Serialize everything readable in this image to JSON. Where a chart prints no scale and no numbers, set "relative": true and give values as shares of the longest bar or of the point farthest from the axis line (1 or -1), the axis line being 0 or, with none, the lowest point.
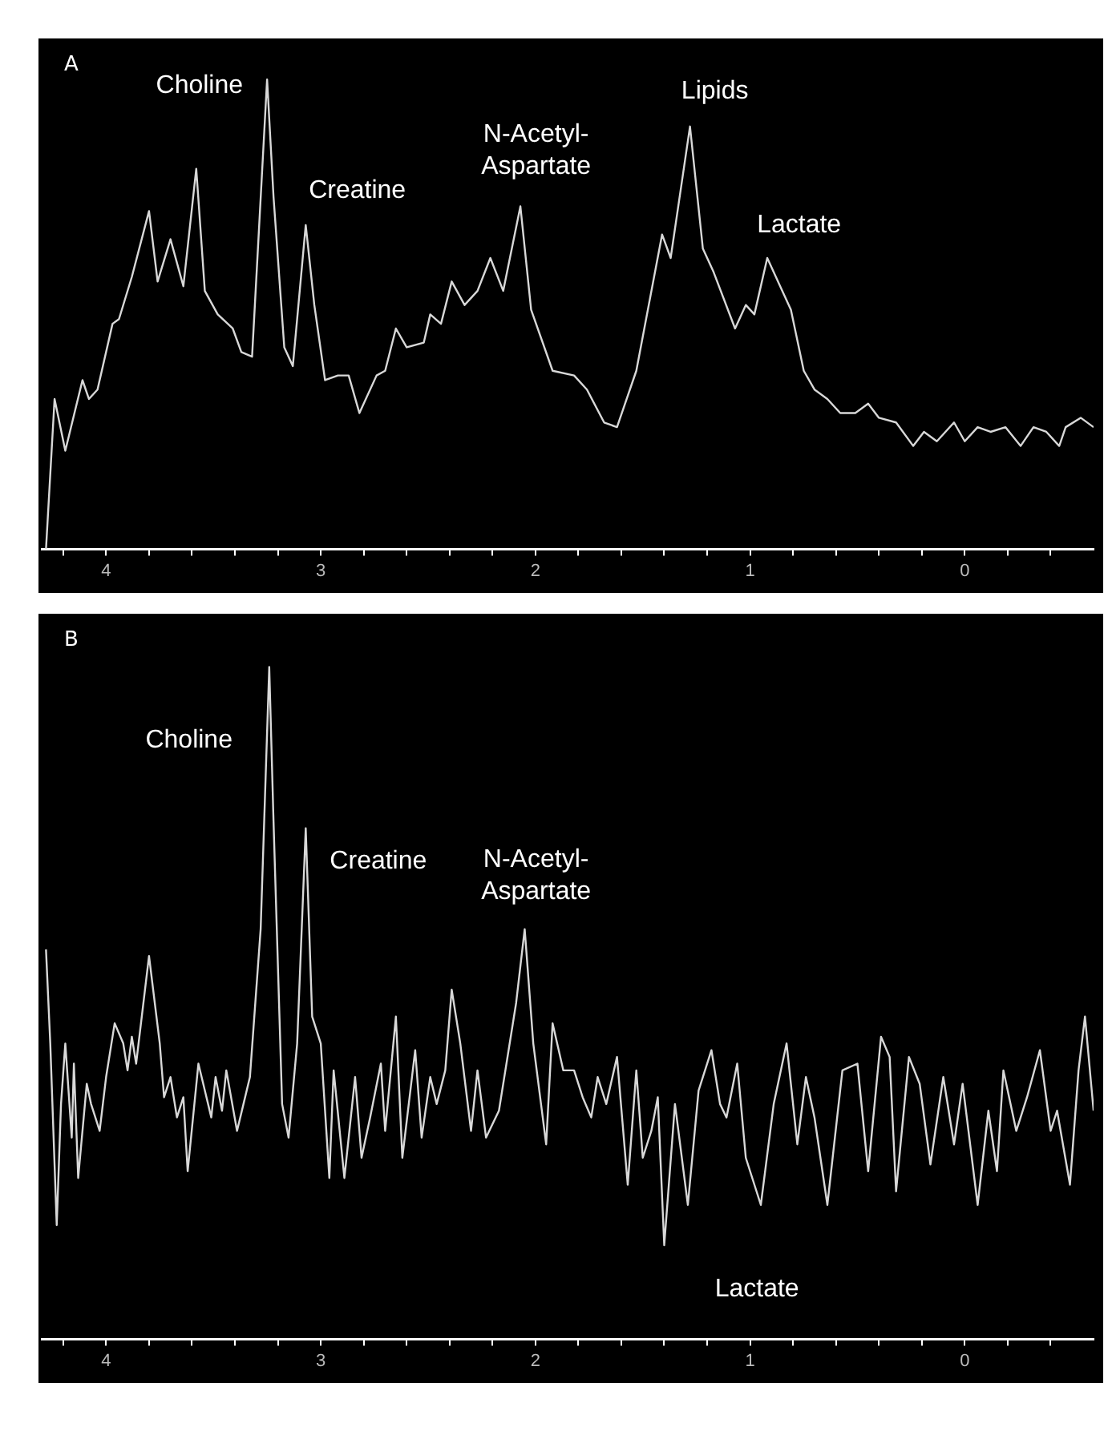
{
  "chart_data": [
    {
      "type": "line",
      "title": "A",
      "relative": true,
      "color": "#d8d8d8",
      "marker": "none",
      "xlim": [
        4.3,
        -0.6
      ],
      "xticks": [
        {
          "value": 4.2,
          "label": null
        },
        4,
        {
          "value": 3.8,
          "label": null
        },
        {
          "value": 3.6,
          "label": null
        },
        {
          "value": 3.4,
          "label": null
        },
        {
          "value": 3.2,
          "label": null
        },
        3,
        {
          "value": 2.8,
          "label": null
        },
        {
          "value": 2.6,
          "label": null
        },
        {
          "value": 2.4,
          "label": null
        },
        {
          "value": 2.2,
          "label": null
        },
        2,
        {
          "value": 1.8,
          "label": null
        },
        {
          "value": 1.6,
          "label": null
        },
        {
          "value": 1.4,
          "label": null
        },
        {
          "value": 1.2,
          "label": null
        },
        1,
        {
          "value": 0.8,
          "label": null
        },
        {
          "value": 0.6,
          "label": null
        },
        {
          "value": 0.4,
          "label": null
        },
        {
          "value": 0.2,
          "label": null
        },
        0,
        {
          "value": -0.2,
          "label": null
        },
        {
          "value": -0.4,
          "label": null
        }
      ],
      "x": [
        4.28,
        4.24,
        4.19,
        4.11,
        4.08,
        4.04,
        3.97,
        3.94,
        3.88,
        3.8,
        3.76,
        3.7,
        3.64,
        3.58,
        3.54,
        3.48,
        3.41,
        3.37,
        3.32,
        3.25,
        3.22,
        3.17,
        3.13,
        3.07,
        3.03,
        2.98,
        2.92,
        2.87,
        2.82,
        2.74,
        2.7,
        2.65,
        2.6,
        2.52,
        2.49,
        2.44,
        2.39,
        2.33,
        2.27,
        2.21,
        2.15,
        2.07,
        2.02,
        1.92,
        1.82,
        1.76,
        1.68,
        1.62,
        1.53,
        1.41,
        1.37,
        1.28,
        1.22,
        1.17,
        1.07,
        1.02,
        0.98,
        0.92,
        0.86,
        0.81,
        0.75,
        0.7,
        0.64,
        0.58,
        0.51,
        0.45,
        0.4,
        0.32,
        0.24,
        0.19,
        0.13,
        0.05,
        0.0,
        -0.06,
        -0.12,
        -0.19,
        -0.26,
        -0.32,
        -0.38,
        -0.44,
        -0.47,
        -0.54,
        -0.6
      ],
      "values": [
        0.0,
        0.32,
        0.21,
        0.36,
        0.32,
        0.34,
        0.48,
        0.49,
        0.58,
        0.72,
        0.57,
        0.66,
        0.56,
        0.81,
        0.55,
        0.5,
        0.47,
        0.42,
        0.41,
        1.0,
        0.75,
        0.43,
        0.39,
        0.69,
        0.52,
        0.36,
        0.37,
        0.37,
        0.29,
        0.37,
        0.38,
        0.47,
        0.43,
        0.44,
        0.5,
        0.48,
        0.57,
        0.52,
        0.55,
        0.62,
        0.55,
        0.73,
        0.51,
        0.38,
        0.37,
        0.34,
        0.27,
        0.26,
        0.38,
        0.67,
        0.62,
        0.9,
        0.64,
        0.59,
        0.47,
        0.52,
        0.5,
        0.62,
        0.56,
        0.51,
        0.38,
        0.34,
        0.32,
        0.29,
        0.29,
        0.31,
        0.28,
        0.27,
        0.22,
        0.25,
        0.23,
        0.27,
        0.23,
        0.26,
        0.25,
        0.26,
        0.22,
        0.26,
        0.25,
        0.22,
        0.26,
        0.28,
        0.26
      ],
      "annotations": [
        "Choline",
        "Creatine",
        "N-Acetyl-\nAspartate",
        "Lipids",
        "Lactate"
      ]
    },
    {
      "type": "line",
      "title": "B",
      "relative": true,
      "color": "#d8d8d8",
      "marker": "none",
      "xlim": [
        4.3,
        -0.6
      ],
      "xticks": [
        {
          "value": 4.2,
          "label": null
        },
        4,
        {
          "value": 3.8,
          "label": null
        },
        {
          "value": 3.6,
          "label": null
        },
        {
          "value": 3.4,
          "label": null
        },
        {
          "value": 3.2,
          "label": null
        },
        3,
        {
          "value": 2.8,
          "label": null
        },
        {
          "value": 2.6,
          "label": null
        },
        {
          "value": 2.4,
          "label": null
        },
        {
          "value": 2.2,
          "label": null
        },
        2,
        {
          "value": 1.8,
          "label": null
        },
        {
          "value": 1.6,
          "label": null
        },
        {
          "value": 1.4,
          "label": null
        },
        {
          "value": 1.2,
          "label": null
        },
        1,
        {
          "value": 0.8,
          "label": null
        },
        {
          "value": 0.6,
          "label": null
        },
        {
          "value": 0.4,
          "label": null
        },
        {
          "value": 0.2,
          "label": null
        },
        0,
        {
          "value": -0.2,
          "label": null
        },
        {
          "value": -0.4,
          "label": null
        }
      ],
      "x": [
        4.28,
        4.26,
        4.23,
        4.21,
        4.19,
        4.16,
        4.15,
        4.13,
        4.09,
        4.07,
        4.03,
        4.0,
        3.96,
        3.92,
        3.9,
        3.88,
        3.86,
        3.8,
        3.75,
        3.73,
        3.7,
        3.67,
        3.64,
        3.62,
        3.57,
        3.54,
        3.51,
        3.49,
        3.46,
        3.44,
        3.39,
        3.36,
        3.33,
        3.28,
        3.24,
        3.22,
        3.18,
        3.15,
        3.11,
        3.07,
        3.04,
        3.0,
        2.96,
        2.94,
        2.89,
        2.84,
        2.81,
        2.77,
        2.72,
        2.7,
        2.65,
        2.62,
        2.56,
        2.53,
        2.49,
        2.46,
        2.42,
        2.39,
        2.35,
        2.3,
        2.27,
        2.23,
        2.17,
        2.09,
        2.05,
        2.01,
        1.95,
        1.92,
        1.87,
        1.82,
        1.78,
        1.74,
        1.71,
        1.67,
        1.62,
        1.57,
        1.53,
        1.5,
        1.46,
        1.43,
        1.4,
        1.35,
        1.29,
        1.24,
        1.18,
        1.14,
        1.11,
        1.06,
        1.02,
        0.95,
        0.89,
        0.83,
        0.78,
        0.74,
        0.7,
        0.64,
        0.57,
        0.5,
        0.45,
        0.39,
        0.35,
        0.32,
        0.26,
        0.21,
        0.16,
        0.1,
        0.05,
        0.01,
        -0.06,
        -0.11,
        -0.15,
        -0.18,
        -0.24,
        -0.29,
        -0.35,
        -0.4,
        -0.43,
        -0.49,
        -0.53,
        -0.56,
        -0.6
      ],
      "values": [
        0.58,
        0.44,
        0.17,
        0.35,
        0.44,
        0.3,
        0.41,
        0.24,
        0.38,
        0.35,
        0.31,
        0.39,
        0.47,
        0.44,
        0.4,
        0.45,
        0.41,
        0.57,
        0.44,
        0.36,
        0.39,
        0.33,
        0.36,
        0.25,
        0.41,
        0.37,
        0.33,
        0.39,
        0.34,
        0.4,
        0.31,
        0.35,
        0.39,
        0.61,
        1.0,
        0.77,
        0.35,
        0.3,
        0.44,
        0.76,
        0.48,
        0.44,
        0.24,
        0.4,
        0.24,
        0.39,
        0.27,
        0.33,
        0.41,
        0.31,
        0.48,
        0.27,
        0.43,
        0.3,
        0.39,
        0.35,
        0.4,
        0.52,
        0.44,
        0.31,
        0.4,
        0.3,
        0.34,
        0.5,
        0.61,
        0.44,
        0.29,
        0.47,
        0.4,
        0.4,
        0.36,
        0.33,
        0.39,
        0.35,
        0.42,
        0.23,
        0.4,
        0.27,
        0.31,
        0.36,
        0.14,
        0.35,
        0.2,
        0.37,
        0.43,
        0.35,
        0.33,
        0.41,
        0.27,
        0.2,
        0.35,
        0.44,
        0.29,
        0.39,
        0.33,
        0.2,
        0.4,
        0.41,
        0.25,
        0.45,
        0.42,
        0.22,
        0.42,
        0.38,
        0.26,
        0.39,
        0.29,
        0.38,
        0.2,
        0.34,
        0.25,
        0.4,
        0.31,
        0.36,
        0.43,
        0.31,
        0.34,
        0.23,
        0.4,
        0.48,
        0.34
      ],
      "annotations": [
        "Choline",
        "Creatine",
        "N-Acetyl-\nAspartate",
        "Lactate"
      ]
    }
  ]
}
